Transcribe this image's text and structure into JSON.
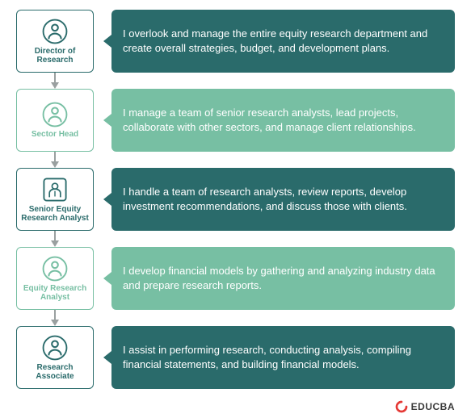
{
  "type": "flowchart",
  "colors": {
    "dark": "#2a6b6b",
    "light": "#77bfa3",
    "arrow": "#9aa0a0",
    "white": "#ffffff",
    "logo_red": "#e53935",
    "logo_text": "#3a3a3a"
  },
  "role_box": {
    "width": 96,
    "height": 78,
    "border_radius": 6,
    "font_size": 10
  },
  "desc_box": {
    "font_size": 13,
    "border_radius": 6
  },
  "icon": {
    "size": 34
  },
  "roles": [
    {
      "label": "Director of Research",
      "icon_variant": "circle",
      "accent": "dark",
      "description": "I overlook and manage the entire equity research department and create overall strategies, budget, and development plans."
    },
    {
      "label": "Sector Head",
      "icon_variant": "circle",
      "accent": "light",
      "description": "I manage a team of senior research analysts, lead projects, collaborate with other sectors, and manage client relationships."
    },
    {
      "label": "Senior Equity Research Analyst",
      "icon_variant": "square",
      "accent": "dark",
      "description": "I handle a team of research analysts, review reports, develop investment recommendations, and discuss those with clients."
    },
    {
      "label": "Equity Research Analyst",
      "icon_variant": "circle",
      "accent": "light",
      "description": "I develop financial models by gathering and analyzing industry data and prepare research reports."
    },
    {
      "label": "Research Associate",
      "icon_variant": "circle",
      "accent": "dark",
      "description": "I assist in performing research, conducting analysis, compiling financial statements, and building financial models."
    }
  ],
  "brand": "EDUCBA"
}
